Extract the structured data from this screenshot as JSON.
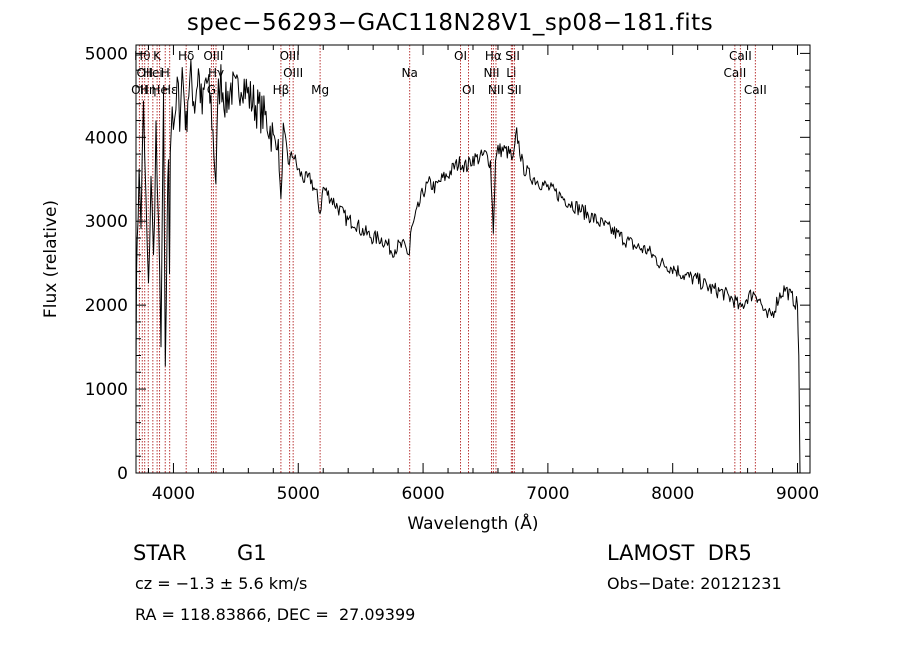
{
  "chart_data": {
    "type": "line",
    "title": "spec−56293−GAC118N28V1_sp08−181.fits",
    "xlabel": "Wavelength (Å)",
    "ylabel": "Flux (relative)",
    "xlim": [
      3700,
      9100
    ],
    "ylim": [
      0,
      5100
    ],
    "xticks": [
      4000,
      5000,
      6000,
      7000,
      8000,
      9000
    ],
    "yticks": [
      0,
      1000,
      2000,
      3000,
      4000,
      5000
    ],
    "grid": false,
    "series": [
      {
        "x": [
          3700,
          3710,
          3725,
          3740,
          3760,
          3780,
          3800,
          3820,
          3840,
          3860,
          3880,
          3900,
          3920,
          3935,
          3950,
          3960,
          3968,
          3975,
          3990,
          4010,
          4030,
          4050,
          4070,
          4090,
          4102,
          4115,
          4140,
          4170,
          4200,
          4230,
          4260,
          4300,
          4340,
          4360,
          4380,
          4420,
          4460,
          4500,
          4550,
          4600,
          4650,
          4700,
          4750,
          4800,
          4840,
          4861,
          4880,
          4920,
          4960,
          5000,
          5050,
          5100,
          5150,
          5175,
          5200,
          5250,
          5300,
          5350,
          5400,
          5450,
          5500,
          5550,
          5600,
          5650,
          5700,
          5750,
          5800,
          5850,
          5890,
          5900,
          5950,
          6000,
          6050,
          6100,
          6150,
          6200,
          6250,
          6300,
          6350,
          6400,
          6450,
          6500,
          6540,
          6563,
          6580,
          6600,
          6650,
          6700,
          6720,
          6750,
          6800,
          6850,
          6900,
          6950,
          7000,
          7100,
          7200,
          7300,
          7400,
          7500,
          7600,
          7700,
          7800,
          7900,
          8000,
          8100,
          8200,
          8300,
          8400,
          8450,
          8500,
          8542,
          8600,
          8662,
          8700,
          8750,
          8800,
          8850,
          8900,
          8950,
          9000,
          9010,
          9020
        ],
        "y": [
          1500,
          2900,
          3500,
          3000,
          4300,
          3200,
          2100,
          3600,
          2500,
          4100,
          2800,
          1700,
          4300,
          1200,
          2800,
          3800,
          2200,
          4000,
          4400,
          4000,
          4600,
          4300,
          4800,
          4400,
          4100,
          4500,
          4700,
          4400,
          4800,
          4300,
          4700,
          4400,
          3500,
          4500,
          4700,
          4400,
          4600,
          4500,
          4700,
          4500,
          4400,
          4300,
          4200,
          4000,
          3900,
          3200,
          4100,
          3700,
          3800,
          3600,
          3500,
          3500,
          3300,
          3100,
          3400,
          3300,
          3200,
          3100,
          3000,
          3000,
          2900,
          2850,
          2800,
          2800,
          2750,
          2650,
          2700,
          2700,
          2600,
          2850,
          3100,
          3350,
          3450,
          3400,
          3500,
          3550,
          3650,
          3700,
          3650,
          3750,
          3750,
          3800,
          3700,
          2900,
          3700,
          3850,
          3850,
          3800,
          3700,
          4050,
          3650,
          3550,
          3500,
          3450,
          3400,
          3300,
          3200,
          3100,
          3000,
          2900,
          2800,
          2700,
          2650,
          2500,
          2450,
          2350,
          2300,
          2200,
          2150,
          2100,
          2050,
          1950,
          2100,
          2150,
          2050,
          1850,
          1900,
          2100,
          2200,
          2100,
          2000,
          1400,
          0
        ]
      }
    ],
    "lines": [
      {
        "wl": 3727,
        "label": "OII",
        "row": 2
      },
      {
        "wl": 3750,
        "label": "Hθ",
        "row": 0
      },
      {
        "wl": 3770,
        "label": "OII",
        "row": 1
      },
      {
        "wl": 3798,
        "label": "Hη",
        "row": 2
      },
      {
        "wl": 3835,
        "label": "Hei",
        "row": 1
      },
      {
        "wl": 3869,
        "label": "K",
        "row": 0
      },
      {
        "wl": 3889,
        "label": "He",
        "row": 2
      },
      {
        "wl": 3934,
        "label": "H",
        "row": 1
      },
      {
        "wl": 3970,
        "label": "Hε",
        "row": 2
      },
      {
        "wl": 4102,
        "label": "Hδ",
        "row": 0
      },
      {
        "wl": 4304,
        "label": "G",
        "row": 2
      },
      {
        "wl": 4320,
        "label": "OIII",
        "row": 0
      },
      {
        "wl": 4341,
        "label": "Hγ",
        "row": 1
      },
      {
        "wl": 4861,
        "label": "Hβ",
        "row": 2
      },
      {
        "wl": 4931,
        "label": "OIII",
        "row": 0
      },
      {
        "wl": 4959,
        "label": "OIII",
        "row": 1
      },
      {
        "wl": 5175,
        "label": "Mg",
        "row": 2
      },
      {
        "wl": 5893,
        "label": "Na",
        "row": 1
      },
      {
        "wl": 6300,
        "label": "OI",
        "row": 0
      },
      {
        "wl": 6364,
        "label": "OI",
        "row": 2
      },
      {
        "wl": 6548,
        "label": "NII",
        "row": 1
      },
      {
        "wl": 6563,
        "label": "Hα",
        "row": 0
      },
      {
        "wl": 6584,
        "label": "NII",
        "row": 2
      },
      {
        "wl": 6707,
        "label": "Li",
        "row": 1
      },
      {
        "wl": 6717,
        "label": "SII",
        "row": 0
      },
      {
        "wl": 6731,
        "label": "SII",
        "row": 2
      },
      {
        "wl": 8498,
        "label": "CaII",
        "row": 1
      },
      {
        "wl": 8542,
        "label": "CaII",
        "row": 0
      },
      {
        "wl": 8662,
        "label": "CaII",
        "row": 2
      }
    ]
  },
  "info": {
    "object_class": "STAR",
    "subclass": "G1",
    "survey": "LAMOST  DR5",
    "cz": "cz = −1.3 ± 5.6 km/s",
    "obs_date": "Obs−Date: 20121231",
    "coords": "RA = 118.83866, DEC =  27.09399"
  }
}
